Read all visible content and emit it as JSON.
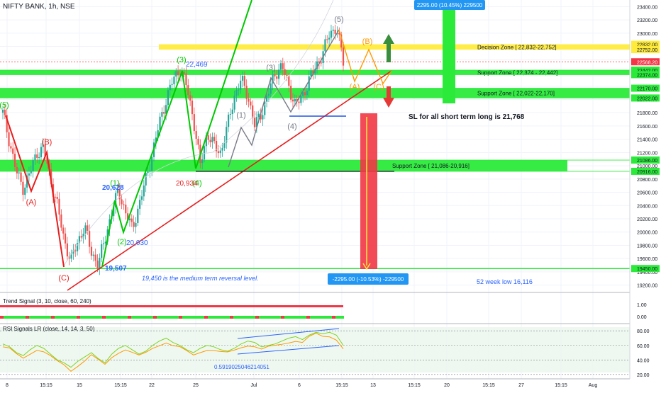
{
  "header": {
    "title": "NIFTY BANK, 1h, NSE"
  },
  "colors": {
    "up": "#26a69a",
    "down": "#ef5350",
    "green_wave": "#00c800",
    "red_line": "#e61e1e",
    "zone_yellow": "#ffeb3b",
    "zone_green": "#2bea3a",
    "blue_text": "#2962ff",
    "price_badge": "#f23645",
    "target_badge": "#2196f3",
    "orange": "#ff9800",
    "gray_wave": "#787b86"
  },
  "chart_data": {
    "type": "candlestick",
    "symbol": "NIFTY BANK",
    "timeframe": "1h",
    "exchange": "NSE",
    "ylim": [
      19100,
      23500
    ],
    "y_ticks": [
      19200,
      19400,
      19600,
      19800,
      20000,
      20200,
      20400,
      20600,
      20800,
      21000,
      21200,
      21400,
      21600,
      21800,
      22000,
      22200,
      22400,
      22600,
      22800,
      23000,
      23200,
      23400
    ],
    "x_tick_labels": [
      "8",
      "15:15",
      "15",
      "15:15",
      "22",
      "25",
      "Jul",
      "6",
      "15:15",
      "13",
      "15:15",
      "20",
      "15:15",
      "27",
      "15:15",
      "Aug"
    ],
    "current_price": "22568.20",
    "price_path": [
      21800,
      21350,
      20900,
      20660,
      20900,
      21200,
      21260,
      20800,
      20400,
      19880,
      19560,
      19860,
      20080,
      19700,
      19507,
      19900,
      20300,
      20628,
      20300,
      20050,
      20400,
      20800,
      21200,
      21650,
      22000,
      22300,
      22469,
      22200,
      21700,
      21000,
      21500,
      21300,
      21200,
      21600,
      22050,
      22300,
      22050,
      21600,
      21800,
      22100,
      22400,
      22500,
      22200,
      21900,
      22050,
      22300,
      22500,
      22700,
      23000,
      23090,
      22568
    ],
    "zones": [
      {
        "label": "Decision Zone [ 22,832-22,752]",
        "high": 22832,
        "low": 22752,
        "color": "#ffeb3b"
      },
      {
        "label": "Support Zone [ 22,374 - 22,442]",
        "high": 22442,
        "low": 22374,
        "color": "#2bea3a"
      },
      {
        "label": "Support Zone [ 22,022-22,170]",
        "high": 22170,
        "low": 22022,
        "color": "#2bea3a"
      },
      {
        "label": "Support Zone [ 21,086-20,916]",
        "high": 21086,
        "low": 20916,
        "color": "#2bea3a"
      }
    ],
    "axis_badges": [
      "22832.00",
      "22752.00",
      "22442.00",
      "22374.00",
      "22170.00",
      "22022.00",
      "21086.00",
      "20916.00",
      "19450.00"
    ],
    "annotations": {
      "sl_text": "SL for all short term long is 21,768",
      "reversal_text": "19,450 is the medium term reversal level.",
      "week52_text": "52 week  low 16,116",
      "target_up": "2295.00 (10.45%) 229500",
      "target_down": "-2295.00 (-10.53%) -229500",
      "level_22469": "22,469",
      "level_20628": "20,628",
      "level_20030": "20,030",
      "level_19507": "19,507",
      "level_20934": "20,934",
      "wave_5_left": "(5)",
      "wave_A_left": "(A)",
      "wave_B_left": "(B)",
      "wave_C_left": "(C)",
      "wave_3_green": "(3)",
      "wave_4_green": "(4)",
      "wave_1_green": "(1)",
      "wave_2_green": "(2)",
      "wave_1_gray": "(1)",
      "wave_3_gray": "(3)",
      "wave_4_gray": "(4)",
      "wave_5_gray": "(5)",
      "wave_A_orange": "(A)",
      "wave_B_orange": "(B)",
      "wave_C_orange": "(C)"
    },
    "indicators": [
      {
        "label": "Trend Signal (3, 10, close, 60, 240)",
        "ticks": [
          "1.00",
          "0.00"
        ]
      },
      {
        "label": "RSI Signals LR (close, 14, 14, 3, 50)",
        "ticks": [
          "80.00",
          "60.00",
          "40.00",
          "20.00"
        ],
        "value_label": "0.5919025046214051",
        "rsi_path": [
          62,
          58,
          50,
          46,
          54,
          60,
          56,
          48,
          40,
          36,
          30,
          38,
          44,
          50,
          42,
          36,
          48,
          56,
          60,
          54,
          48,
          52,
          60,
          66,
          70,
          64,
          60,
          54,
          50,
          56,
          60,
          58,
          54,
          52,
          56,
          62,
          66,
          64,
          58,
          60,
          62,
          66,
          70,
          72,
          68,
          74,
          78,
          76,
          78,
          74,
          60
        ]
      }
    ]
  }
}
